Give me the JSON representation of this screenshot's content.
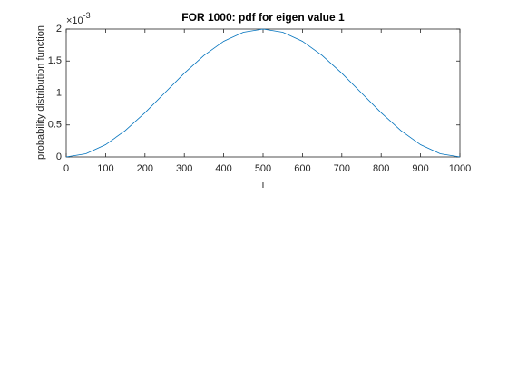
{
  "chart_data": {
    "type": "line",
    "title": "FOR 1000: pdf for eigen value 1",
    "x_label": "i",
    "y_label": "probability distribution function",
    "y_multiplier": "×10",
    "y_multiplier_exponent": "-3",
    "x": [
      0,
      50,
      100,
      150,
      200,
      250,
      300,
      350,
      400,
      450,
      500,
      550,
      600,
      650,
      700,
      750,
      800,
      850,
      900,
      950,
      1000
    ],
    "series": [
      {
        "color": "#0072bd",
        "values": [
          0,
          0.049,
          0.191,
          0.412,
          0.691,
          1.0,
          1.309,
          1.588,
          1.809,
          1.951,
          2.0,
          1.951,
          1.809,
          1.588,
          1.309,
          1.0,
          0.691,
          0.412,
          0.191,
          0.049,
          0
        ]
      }
    ],
    "xlim": [
      0,
      1000
    ],
    "xticks": [
      0,
      100,
      200,
      300,
      400,
      500,
      600,
      700,
      800,
      900,
      1000
    ],
    "ylim": [
      0,
      2
    ],
    "yticks": [
      0,
      0.5,
      1,
      1.5,
      2
    ],
    "grid": false
  }
}
